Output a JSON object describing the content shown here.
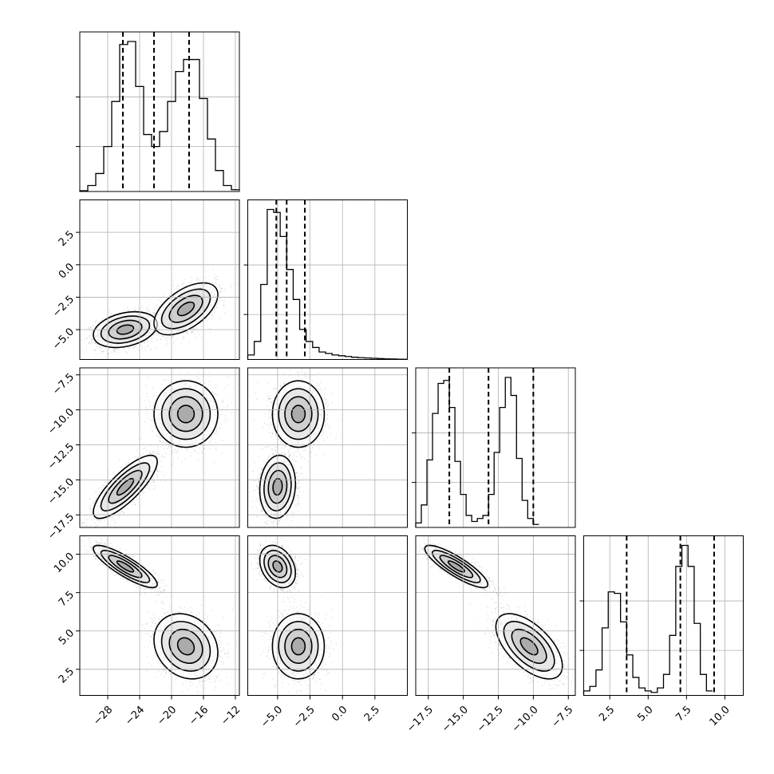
{
  "chart_data": {
    "type": "corner",
    "parameters": [
      {
        "range": [
          -31.5,
          -11.5
        ],
        "ticks": [
          -28,
          -24,
          -20,
          -16,
          -12
        ],
        "tick_labels": [
          "−28",
          "−24",
          "−20",
          "−16",
          "−12"
        ]
      },
      {
        "range": [
          -7.3,
          5.0
        ],
        "ticks": [
          -5.0,
          -2.5,
          0.0,
          2.5
        ],
        "tick_labels": [
          "−5.0",
          "−2.5",
          "0.0",
          "2.5"
        ]
      },
      {
        "range": [
          -18.4,
          -7.0
        ],
        "ticks": [
          -17.5,
          -15.0,
          -12.5,
          -10.0,
          -7.5
        ],
        "tick_labels": [
          "−17.5",
          "−15.0",
          "−12.5",
          "−10.0",
          "−7.5"
        ]
      },
      {
        "range": [
          0.8,
          11.2
        ],
        "ticks": [
          2.5,
          5.0,
          7.5,
          10.0
        ],
        "tick_labels": [
          "2.5",
          "5.0",
          "7.5",
          "10.0"
        ]
      }
    ],
    "y_tick_labels": {
      "1": [
        "2.5",
        "0.0",
        "−2.5",
        "−5.0"
      ],
      "2": [
        "−7.5",
        "−10.0",
        "−12.5",
        "−15.0",
        "−17.5"
      ],
      "3": [
        "10.0",
        "7.5",
        "5.0",
        "2.5"
      ]
    },
    "histograms": [
      {
        "parameter": 0,
        "edges_from": -31.5,
        "bin_width": 1.0,
        "counts": [
          0.005,
          0.04,
          0.12,
          0.3,
          0.6,
          0.98,
          1.0,
          0.7,
          0.38,
          0.3,
          0.4,
          0.6,
          0.8,
          0.88,
          0.88,
          0.62,
          0.35,
          0.14,
          0.04,
          0.012
        ]
      },
      {
        "parameter": 1,
        "edges_from": -7.3,
        "bin_width": 0.5,
        "counts": [
          0.03,
          0.12,
          0.5,
          1.0,
          0.98,
          0.82,
          0.6,
          0.4,
          0.2,
          0.12,
          0.08,
          0.05,
          0.04,
          0.03,
          0.025,
          0.02,
          0.015,
          0.012,
          0.01,
          0.008,
          0.006,
          0.004,
          0.003,
          0.002,
          0.001
        ]
      },
      {
        "parameter": 2,
        "edges_from": -18.4,
        "bin_width": 0.4,
        "counts": [
          0.03,
          0.15,
          0.45,
          0.76,
          0.96,
          0.98,
          0.8,
          0.44,
          0.22,
          0.08,
          0.04,
          0.06,
          0.08,
          0.22,
          0.5,
          0.8,
          1.0,
          0.88,
          0.46,
          0.18,
          0.06,
          0.02
        ]
      },
      {
        "parameter": 3,
        "edges_from": 0.8,
        "bin_width": 0.4,
        "counts": [
          0.03,
          0.06,
          0.17,
          0.45,
          0.69,
          0.68,
          0.49,
          0.27,
          0.12,
          0.05,
          0.03,
          0.02,
          0.05,
          0.14,
          0.4,
          0.86,
          1.0,
          0.86,
          0.48,
          0.14,
          0.03
        ]
      }
    ],
    "quantiles_16_50_84": [
      [
        -26.1,
        -22.2,
        -17.8
      ],
      [
        -5.1,
        -4.3,
        -2.9
      ],
      [
        -16.0,
        -13.2,
        -10.0
      ],
      [
        3.6,
        7.1,
        9.3
      ]
    ],
    "modes": [
      {
        "weight": 0.5,
        "mean": [
          -25.8,
          -5.0,
          -15.5,
          9.2
        ],
        "std": [
          1.6,
          0.55,
          0.9,
          0.55
        ],
        "correlations": {
          "0-1": 0.3,
          "0-2": 0.8,
          "0-3": -0.85,
          "1-2": 0.1,
          "1-3": -0.3,
          "2-3": -0.85
        }
      },
      {
        "weight": 0.5,
        "mean": [
          -18.2,
          -3.4,
          -10.3,
          4.0
        ],
        "std": [
          1.6,
          0.8,
          0.95,
          0.85
        ],
        "correlations": {
          "0-1": 0.55,
          "0-2": 0.0,
          "0-3": -0.2,
          "1-2": 0.0,
          "1-3": 0.0,
          "2-3": -0.6
        }
      }
    ]
  }
}
